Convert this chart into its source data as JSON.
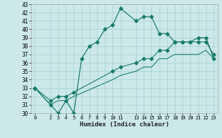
{
  "xlabel": "Humidex (Indice chaleur)",
  "background_color": "#cce8e8",
  "grid_color": "#aad4d4",
  "line_color": "#1a7a6e",
  "xlim": [
    -0.5,
    23.5
  ],
  "ylim": [
    30,
    43
  ],
  "xticks": [
    0,
    2,
    3,
    4,
    5,
    6,
    7,
    8,
    9,
    10,
    11,
    13,
    14,
    15,
    16,
    17,
    18,
    19,
    20,
    21,
    22,
    23
  ],
  "yticks": [
    30,
    31,
    32,
    33,
    34,
    35,
    36,
    37,
    38,
    39,
    40,
    41,
    42,
    43
  ],
  "line1_x": [
    0,
    2,
    3,
    4,
    5,
    6,
    7,
    8,
    9,
    10,
    11,
    13,
    14,
    15,
    16,
    17,
    18,
    19,
    20,
    21,
    22,
    23
  ],
  "line1_y": [
    33,
    31,
    30,
    31.5,
    30,
    36.5,
    38,
    38.5,
    40,
    40.5,
    42.5,
    41,
    41.5,
    41.5,
    39.5,
    39.5,
    38.5,
    38.5,
    38.5,
    39,
    39,
    36.5
  ],
  "line2_x": [
    0,
    2,
    3,
    4,
    5,
    10,
    11,
    13,
    14,
    15,
    16,
    17,
    18,
    19,
    20,
    21,
    22,
    23
  ],
  "line2_y": [
    33,
    31.5,
    32,
    32,
    32.5,
    35,
    35.5,
    36,
    36.5,
    36.5,
    37.5,
    37.5,
    38.5,
    38.5,
    38.5,
    38.5,
    38.5,
    37
  ],
  "line3_x": [
    0,
    2,
    3,
    4,
    5,
    10,
    11,
    13,
    14,
    15,
    16,
    17,
    18,
    19,
    20,
    21,
    22,
    23
  ],
  "line3_y": [
    33,
    31,
    31.5,
    31.5,
    32,
    34,
    34.5,
    35,
    35.5,
    35.5,
    36.5,
    36.5,
    37,
    37,
    37,
    37,
    37.5,
    36.5
  ]
}
